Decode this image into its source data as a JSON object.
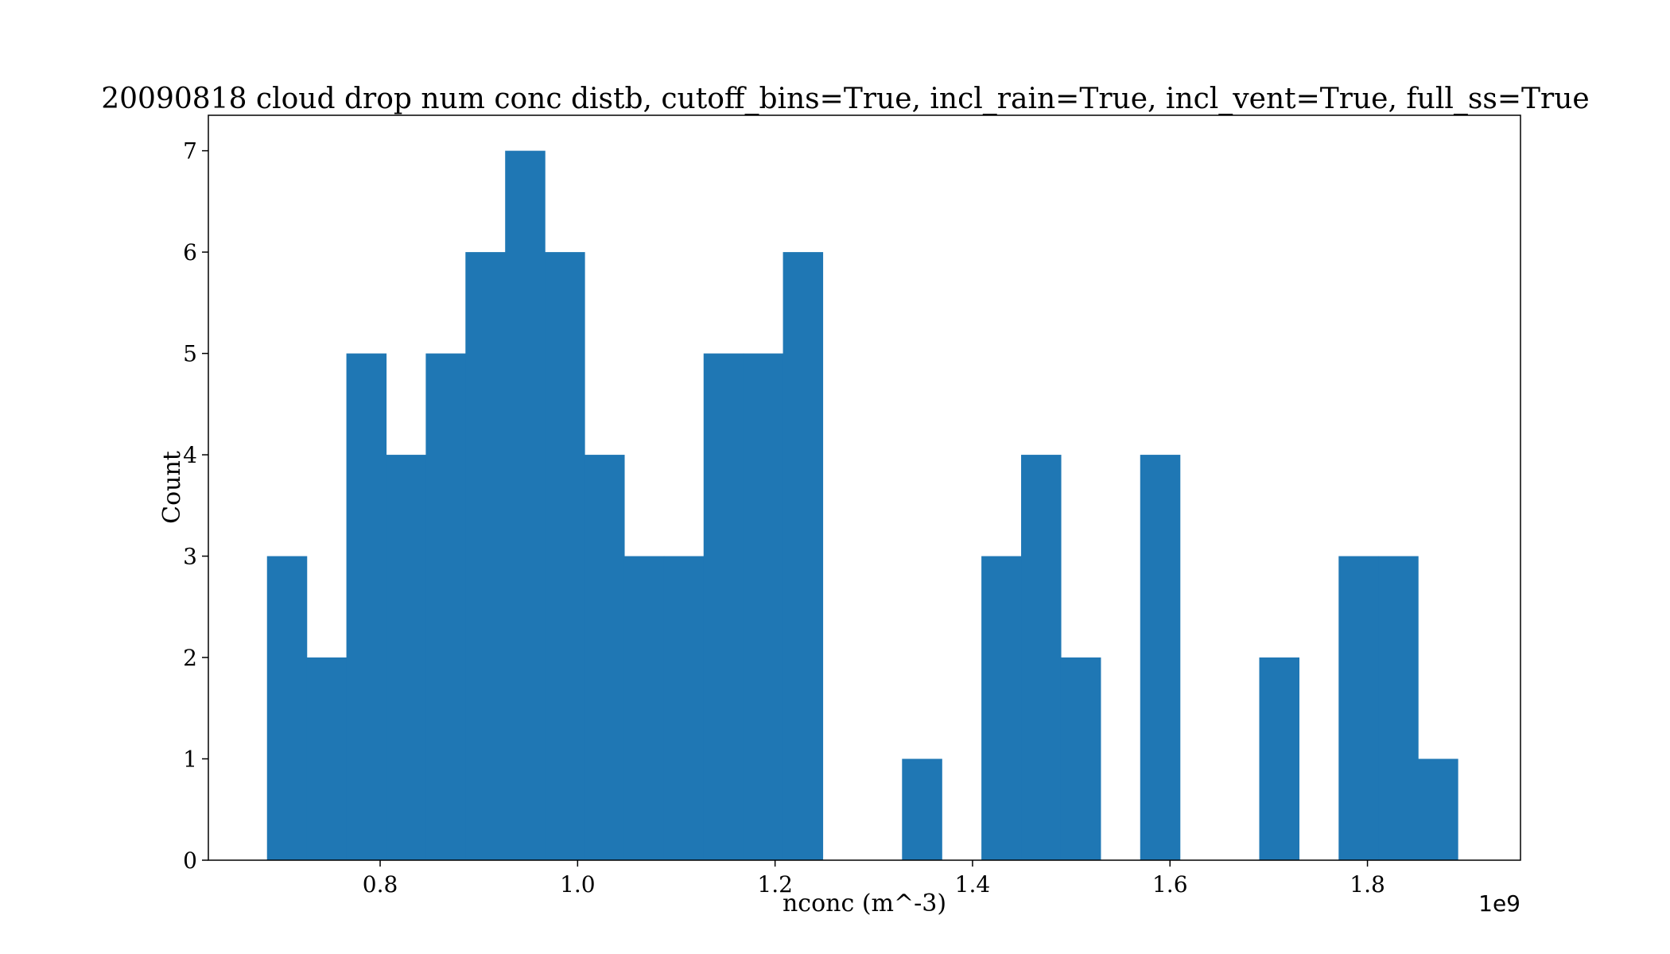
{
  "chart_data": {
    "type": "bar",
    "title": "20090818 cloud drop num conc distb, cutoff_bins=True, incl_rain=True, incl_vent=True, full_ss=True",
    "xlabel": "nconc (m^-3)",
    "ylabel": "Count",
    "x_offset_label": "1e9",
    "xlim": [
      0.626,
      1.955
    ],
    "ylim": [
      0,
      7.35
    ],
    "x_ticks": [
      0.8,
      1.0,
      1.2,
      1.4,
      1.6,
      1.8
    ],
    "x_tick_labels": [
      "0.8",
      "1.0",
      "1.2",
      "1.4",
      "1.6",
      "1.8"
    ],
    "y_ticks": [
      0,
      1,
      2,
      3,
      4,
      5,
      6,
      7
    ],
    "y_tick_labels": [
      "0",
      "1",
      "2",
      "3",
      "4",
      "5",
      "6",
      "7"
    ],
    "bin_start": 0.6854,
    "bin_width": 0.0402,
    "counts": [
      3,
      2,
      5,
      4,
      5,
      6,
      7,
      6,
      4,
      3,
      3,
      5,
      5,
      6,
      0,
      0,
      1,
      0,
      3,
      4,
      2,
      0,
      4,
      0,
      0,
      2,
      0,
      3,
      3,
      1
    ],
    "bar_color": "#1f77b4",
    "grid": false,
    "legend": "none"
  }
}
